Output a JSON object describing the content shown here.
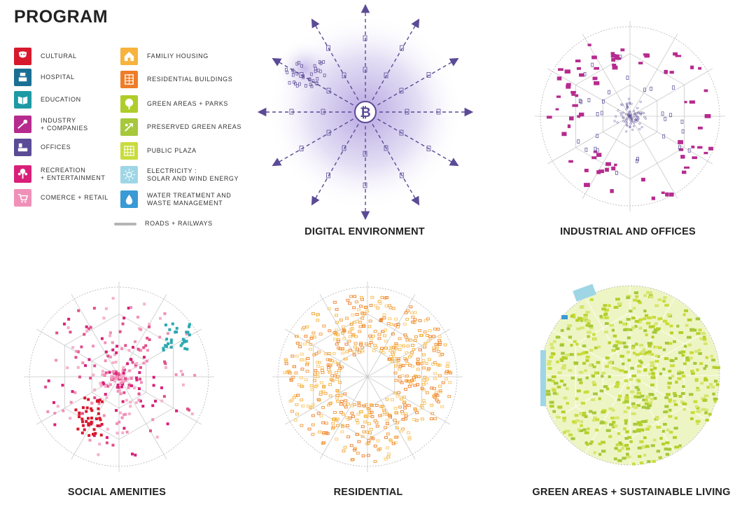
{
  "title": "PROGRAM",
  "legend": {
    "left": [
      {
        "key": "cultural",
        "label": "CULTURAL",
        "color": "#d7192e",
        "icon": "cultural-icon"
      },
      {
        "key": "hospital",
        "label": "HOSPITAL",
        "color": "#1b6f94",
        "icon": "hospital-icon"
      },
      {
        "key": "education",
        "label": "EDUCATION",
        "color": "#1e9aa5",
        "icon": "book-icon"
      },
      {
        "key": "industry",
        "label": "INDUSTRY\n+ COMPANIES",
        "color": "#b62b8e",
        "icon": "industry-icon"
      },
      {
        "key": "offices",
        "label": "OFFICES",
        "color": "#5b4a96",
        "icon": "office-desk-icon"
      },
      {
        "key": "recreation",
        "label": "RECREATION\n+ ENTERTAINMENT",
        "color": "#d8207a",
        "icon": "tree-figure-icon"
      },
      {
        "key": "commerce",
        "label": "COMERCE + RETAIL",
        "color": "#f090b8",
        "icon": "shopping-cart-icon"
      }
    ],
    "right": [
      {
        "key": "family",
        "label": "FAMILIY HOUSING",
        "color": "#f7b33c",
        "icon": "house-icon"
      },
      {
        "key": "residential",
        "label": "RESIDENTIAL BUILDINGS",
        "color": "#ee7d29",
        "icon": "building-grid-icon"
      },
      {
        "key": "green",
        "label": "GREEN AREAS + PARKS",
        "color": "#aecd2a",
        "icon": "tree-icon"
      },
      {
        "key": "preserved",
        "label": "PRESERVED GREEN AREAS",
        "color": "#a6c83a",
        "icon": "leaf-arrow-icon"
      },
      {
        "key": "plaza",
        "label": "PUBLIC PLAZA",
        "color": "#c9dc3c",
        "icon": "plaza-grid-icon"
      },
      {
        "key": "electricity",
        "label": "ELECTRICITY :\nSOLAR AND WIND ENERGY",
        "color": "#9fd6e6",
        "icon": "sun-icon"
      },
      {
        "key": "water",
        "label": "WATER TREATMENT AND\nWASTE MANAGEMENT",
        "color": "#3a9ad5",
        "icon": "water-drop-icon"
      }
    ],
    "roads": {
      "label": "ROADS + RAILWAYS",
      "color": "#b5b5b5"
    }
  },
  "maps": [
    {
      "key": "digital",
      "caption": "DIGITAL ENVIRONMENT"
    },
    {
      "key": "industrial",
      "caption": "INDUSTRIAL AND OFFICES"
    },
    {
      "key": "social",
      "caption": "SOCIAL AMENITIES"
    },
    {
      "key": "residential",
      "caption": "RESIDENTIAL"
    },
    {
      "key": "green",
      "caption": "GREEN AREAS + SUSTAINABLE LIVING"
    }
  ],
  "center_symbol": "₿",
  "colors": {
    "digital": "#5b4a96",
    "industrial": "#b62b8e",
    "social": "#d8207a",
    "residential": "#ee7d29",
    "green": "#b5cf2a",
    "roads": "#b5b5b5"
  }
}
